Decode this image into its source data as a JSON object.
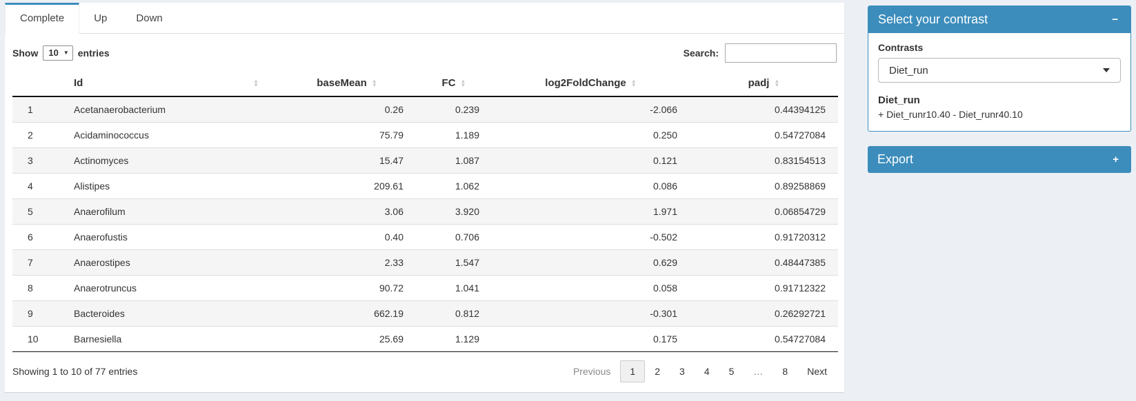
{
  "colors": {
    "accent": "#3c8dbc",
    "page_bg": "#ecf0f5"
  },
  "tabs": [
    {
      "label": "Complete",
      "active": true
    },
    {
      "label": "Up",
      "active": false
    },
    {
      "label": "Down",
      "active": false
    }
  ],
  "length_control": {
    "label_before": "Show",
    "selected": "10",
    "label_after": "entries"
  },
  "search": {
    "label": "Search:",
    "value": ""
  },
  "table": {
    "columns": [
      "Id",
      "baseMean",
      "FC",
      "log2FoldChange",
      "padj"
    ],
    "rows": [
      [
        "1",
        "Acetanaerobacterium",
        "0.26",
        "0.239",
        "-2.066",
        "0.44394125"
      ],
      [
        "2",
        "Acidaminococcus",
        "75.79",
        "1.189",
        "0.250",
        "0.54727084"
      ],
      [
        "3",
        "Actinomyces",
        "15.47",
        "1.087",
        "0.121",
        "0.83154513"
      ],
      [
        "4",
        "Alistipes",
        "209.61",
        "1.062",
        "0.086",
        "0.89258869"
      ],
      [
        "5",
        "Anaerofilum",
        "3.06",
        "3.920",
        "1.971",
        "0.06854729"
      ],
      [
        "6",
        "Anaerofustis",
        "0.40",
        "0.706",
        "-0.502",
        "0.91720312"
      ],
      [
        "7",
        "Anaerostipes",
        "2.33",
        "1.547",
        "0.629",
        "0.48447385"
      ],
      [
        "8",
        "Anaerotruncus",
        "90.72",
        "1.041",
        "0.058",
        "0.91712322"
      ],
      [
        "9",
        "Bacteroides",
        "662.19",
        "0.812",
        "-0.301",
        "0.26292721"
      ],
      [
        "10",
        "Barnesiella",
        "25.69",
        "1.129",
        "0.175",
        "0.54727084"
      ]
    ],
    "info": "Showing 1 to 10 of 77 entries",
    "pagination": {
      "previous": "Previous",
      "pages": [
        "1",
        "2",
        "3",
        "4",
        "5",
        "…",
        "8"
      ],
      "active": "1",
      "next": "Next"
    }
  },
  "contrast_panel": {
    "title": "Select your contrast",
    "collapse_icon": "−",
    "contrasts_label": "Contrasts",
    "selected_contrast": "Diet_run",
    "contrast_name": "Diet_run",
    "contrast_formula": "+ Diet_runr10.40 - Diet_runr40.10"
  },
  "export_panel": {
    "title": "Export",
    "expand_icon": "+"
  }
}
